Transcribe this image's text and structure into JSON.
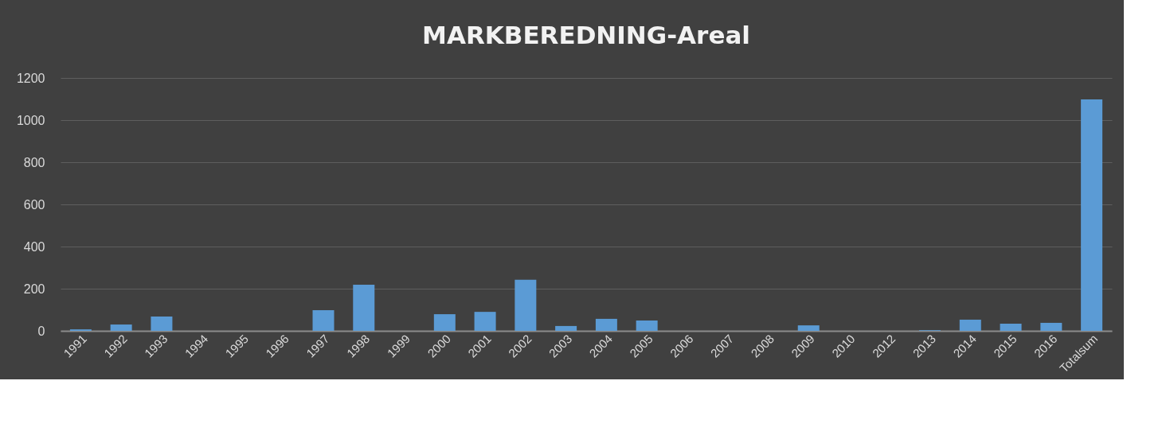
{
  "chart_data": {
    "type": "bar",
    "title": "MARKBEREDNING-Areal",
    "categories": [
      "1991",
      "1992",
      "1993",
      "1994",
      "1995",
      "1996",
      "1997",
      "1998",
      "1999",
      "2000",
      "2001",
      "2002",
      "2003",
      "2004",
      "2005",
      "2006",
      "2007",
      "2008",
      "2009",
      "2010",
      "2012",
      "2013",
      "2014",
      "2015",
      "2016",
      "Totalsum"
    ],
    "values": [
      7,
      30,
      68,
      0,
      0,
      0,
      98,
      219,
      0,
      79,
      90,
      242,
      23,
      57,
      49,
      0,
      0,
      0,
      26,
      0,
      0,
      3,
      53,
      34,
      38,
      1098
    ],
    "color": "#5b9bd5",
    "ylim": [
      0,
      1200
    ],
    "yticks": [
      0,
      200,
      400,
      600,
      800,
      1000,
      1200
    ],
    "grid": "y"
  }
}
